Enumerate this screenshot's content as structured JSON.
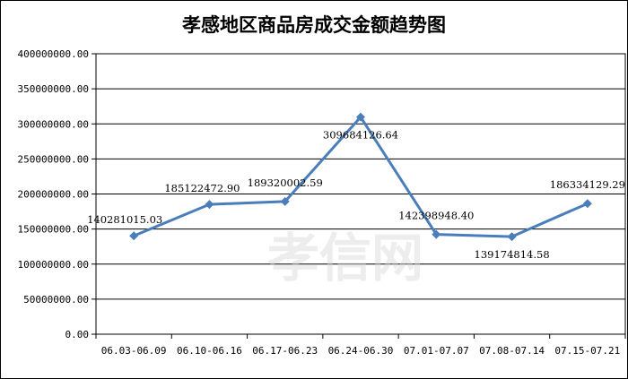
{
  "chart_data": {
    "type": "line",
    "title": "孝感地区商品房成交金额趋势图",
    "categories": [
      "06.03-06.09",
      "06.10-06.16",
      "06.17-06.23",
      "06.24-06.30",
      "07.01-07.07",
      "07.08-07.14",
      "07.15-07.21"
    ],
    "series": [
      {
        "values": [
          140281015.03,
          185122472.9,
          189320002.59,
          309684126.64,
          142398948.4,
          139174814.58,
          186334129.29
        ],
        "labels": [
          "140281015.03",
          "185122472.90",
          "189320002.59",
          "309684126.64",
          "142398948.40",
          "139174814.58",
          "186334129.29"
        ],
        "color": "#4a7ebb"
      }
    ],
    "y_ticks": [
      "0.00",
      "50000000.00",
      "100000000.00",
      "150000000.00",
      "200000000.00",
      "250000000.00",
      "300000000.00",
      "350000000.00",
      "400000000.00"
    ],
    "ylim": [
      0,
      400000000
    ],
    "grid": "horizontal",
    "legend": "none"
  },
  "watermark": "孝信网"
}
